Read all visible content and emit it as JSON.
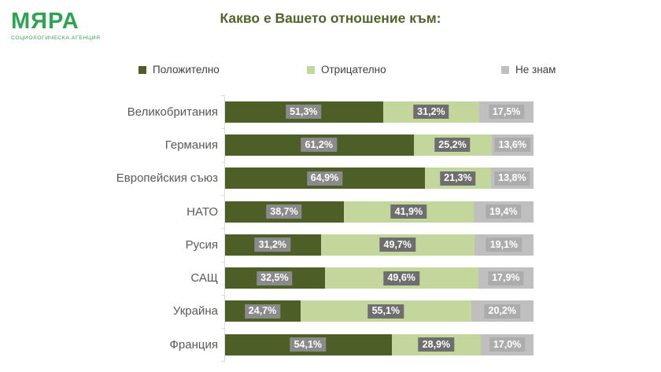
{
  "logo": {
    "name": "МЯРА",
    "subtitle": "СОЦИОЛОГИЧЕСКА АГЕНЦИЯ",
    "color": "#2EA452"
  },
  "title": "Какво е Вашето отношение към:",
  "title_color": "#50642B",
  "legend": [
    {
      "label": "Положително",
      "color": "#4D5F27"
    },
    {
      "label": "Отрицателно",
      "color": "#C3D69B"
    },
    {
      "label": "Не знам",
      "color": "#BFBFBF"
    }
  ],
  "chart_data": {
    "type": "bar",
    "orientation": "horizontal",
    "stacked": true,
    "unit": "%",
    "xlim": [
      0,
      100
    ],
    "grid": false,
    "legend_position": "top",
    "title": "Какво е Вашето отношение към:",
    "categories": [
      "Великобритания",
      "Германия",
      "Европейския съюз",
      "НАТО",
      "Русия",
      "САЩ",
      "Украйна",
      "Франция"
    ],
    "series": [
      {
        "name": "Положително",
        "color": "#4D5F27",
        "label_bg": "#8A8A8A",
        "values": [
          51.3,
          61.2,
          64.9,
          38.7,
          31.2,
          32.5,
          24.7,
          54.1
        ],
        "labels": [
          "51,3%",
          "61,2%",
          "64,9%",
          "38,7%",
          "31,2%",
          "32,5%",
          "24,7%",
          "54,1%"
        ]
      },
      {
        "name": "Отрицателно",
        "color": "#C3D69B",
        "label_bg": "#6E6E6E",
        "values": [
          31.2,
          25.2,
          21.3,
          41.9,
          49.7,
          49.6,
          55.1,
          28.9
        ],
        "labels": [
          "31,2%",
          "25,2%",
          "21,3%",
          "41,9%",
          "49,7%",
          "49,6%",
          "55,1%",
          "28,9%"
        ]
      },
      {
        "name": "Не знам",
        "color": "#BFBFBF",
        "label_bg": "#ACACAC",
        "values": [
          17.5,
          13.6,
          13.8,
          19.4,
          19.1,
          17.9,
          20.2,
          17.0
        ],
        "labels": [
          "17,5%",
          "13,6%",
          "13,8%",
          "19,4%",
          "19,1%",
          "17,9%",
          "20,2%",
          "17,0%"
        ]
      }
    ]
  }
}
